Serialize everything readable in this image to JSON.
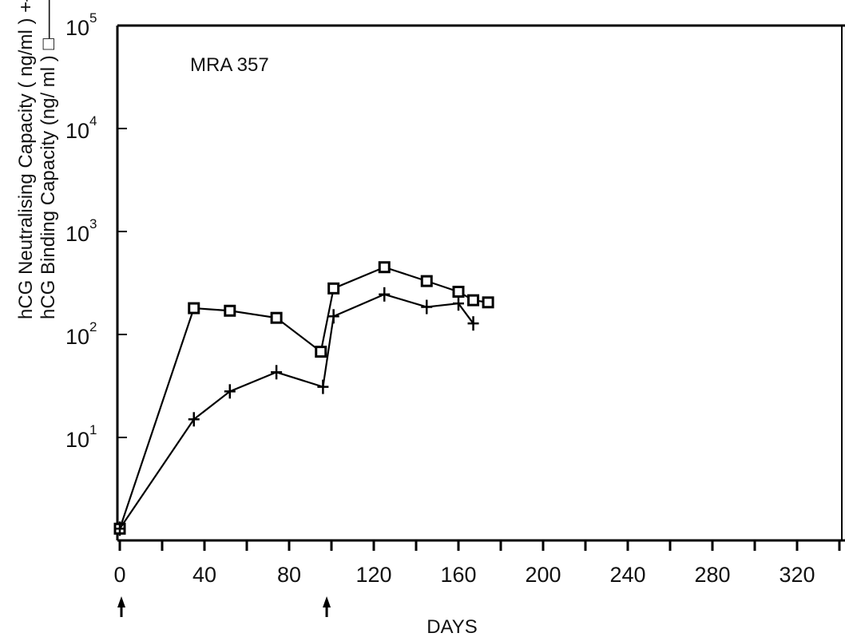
{
  "chart_data": {
    "type": "line",
    "title": "",
    "annotation": "MRA 357",
    "xlabel": "DAYS",
    "ylabel_lines": [
      "hCG Neutralising Capacity ( ng/ml ) +——+",
      "hCG Binding Capacity (ng/ ml ) □——□"
    ],
    "y_scale": "log",
    "ylim": [
      1,
      100000
    ],
    "xlim": [
      0,
      340
    ],
    "x_ticks": [
      0,
      40,
      80,
      120,
      160,
      200,
      240,
      280,
      320
    ],
    "x_tick_labels": [
      "0",
      "40",
      "80",
      "120",
      "160",
      "200",
      "240",
      "280",
      "320"
    ],
    "y_ticks": [
      {
        "base": "10",
        "exp": "1",
        "value": 10
      },
      {
        "base": "10",
        "exp": "2",
        "value": 100
      },
      {
        "base": "10",
        "exp": "3",
        "value": 1000
      },
      {
        "base": "10",
        "exp": "4",
        "value": 10000
      },
      {
        "base": "10",
        "exp": "5",
        "value": 100000
      }
    ],
    "injection_days": [
      0,
      97
    ],
    "series": [
      {
        "marker": "square",
        "x": [
          0,
          35,
          52,
          74,
          95,
          101,
          125,
          145,
          160,
          167,
          174
        ],
        "y": [
          1.3,
          180,
          170,
          145,
          68,
          280,
          450,
          330,
          260,
          215,
          205
        ]
      },
      {
        "marker": "plus",
        "x": [
          0,
          35,
          52,
          74,
          96,
          101,
          125,
          145,
          160,
          167
        ],
        "y": [
          1.3,
          15,
          28,
          43,
          31,
          150,
          245,
          185,
          200,
          128
        ]
      }
    ]
  }
}
